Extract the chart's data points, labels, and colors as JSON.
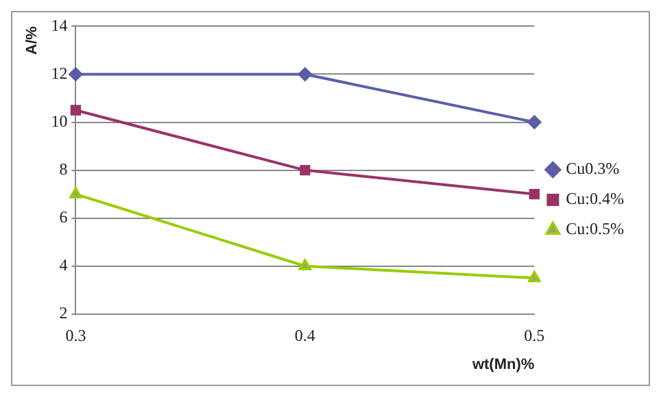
{
  "chart_data": {
    "type": "line",
    "xlabel": "wt(Mn)%",
    "ylabel": "A/%",
    "categories": [
      "0.3",
      "0.4",
      "0.5"
    ],
    "series": [
      {
        "name": "Cu0.3%",
        "color": "#5b5ea6",
        "values": [
          12,
          12,
          10
        ],
        "marker": "diamond"
      },
      {
        "name": "Cu:0.4%",
        "color": "#993366",
        "values": [
          10.5,
          8,
          7
        ],
        "marker": "square"
      },
      {
        "name": "Cu:0.5%",
        "color": "#99cc00",
        "values": [
          7,
          4,
          3.5
        ],
        "marker": "triangle"
      }
    ],
    "ylim": [
      2,
      14
    ],
    "yticks": [
      2,
      4,
      6,
      8,
      10,
      12,
      14
    ],
    "grid": "y",
    "legend": "right",
    "line_style": "solid"
  }
}
